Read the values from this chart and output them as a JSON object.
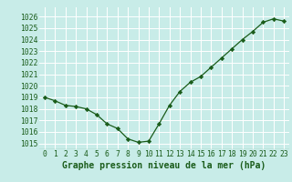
{
  "x": [
    0,
    1,
    2,
    3,
    4,
    5,
    6,
    7,
    8,
    9,
    10,
    11,
    12,
    13,
    14,
    15,
    16,
    17,
    18,
    19,
    20,
    21,
    22,
    23
  ],
  "y": [
    1019.0,
    1018.7,
    1018.3,
    1018.2,
    1018.0,
    1017.5,
    1016.7,
    1016.3,
    1015.4,
    1015.1,
    1015.2,
    1016.7,
    1018.3,
    1019.5,
    1020.3,
    1020.8,
    1021.6,
    1022.4,
    1023.2,
    1024.0,
    1024.7,
    1025.5,
    1025.8,
    1025.6
  ],
  "line_color": "#1a5c1a",
  "marker": "D",
  "marker_size": 2.2,
  "line_width": 0.9,
  "bg_color": "#c8ece8",
  "grid_color": "#ffffff",
  "xlabel": "Graphe pression niveau de la mer (hPa)",
  "xlabel_fontsize": 7.0,
  "xlabel_color": "#1a5c1a",
  "tick_color": "#1a5c1a",
  "tick_fontsize": 5.8,
  "ylim": [
    1014.5,
    1026.8
  ],
  "yticks": [
    1015,
    1016,
    1017,
    1018,
    1019,
    1020,
    1021,
    1022,
    1023,
    1024,
    1025,
    1026
  ],
  "xlim": [
    -0.5,
    23.5
  ]
}
